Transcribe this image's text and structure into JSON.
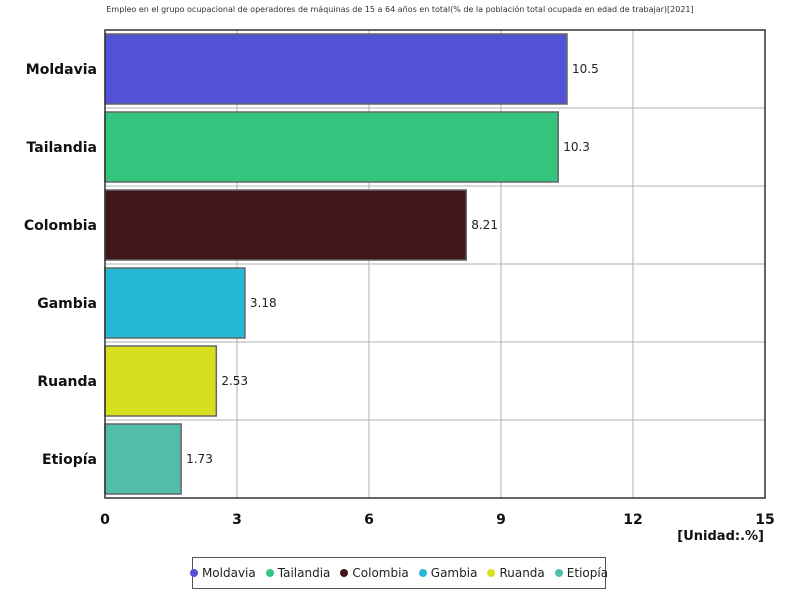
{
  "chart_data": {
    "type": "bar",
    "orientation": "horizontal",
    "title": "Empleo en el grupo ocupacional de operadores de máquinas de 15 a 64 años en total(% de la población total ocupada en edad de trabajar)[2021]",
    "unit_label": "[Unidad:.%]",
    "categories": [
      "Moldavia",
      "Tailandia",
      "Colombia",
      "Gambia",
      "Ruanda",
      "Etiopía"
    ],
    "values": [
      10.5,
      10.3,
      8.21,
      3.18,
      2.53,
      1.73
    ],
    "value_labels": [
      "10.5",
      "10.3",
      "8.21",
      "3.18",
      "2.53",
      "1.73"
    ],
    "colors": [
      "#5252d6",
      "#35c47e",
      "#42141b",
      "#24b8d6",
      "#d6e01f",
      "#52bdab"
    ],
    "xlim": [
      0,
      15
    ],
    "xticks": [
      "0",
      "3",
      "6",
      "9",
      "12",
      "15"
    ],
    "grid": true,
    "legend_position": "bottom"
  }
}
